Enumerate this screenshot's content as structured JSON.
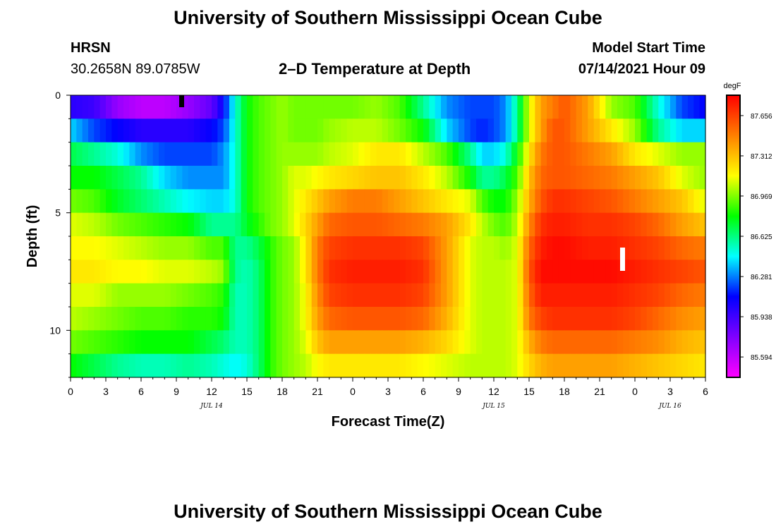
{
  "header": {
    "title": "University of Southern Mississippi Ocean Cube",
    "station": "HRSN",
    "coords": "30.2658N  89.0785W",
    "plot_title": "2–D Temperature at Depth",
    "model_label": "Model Start Time",
    "model_time": "07/14/2021 Hour 09"
  },
  "footer": {
    "title": "University of Southern Mississippi Ocean Cube"
  },
  "colorbar": {
    "unit": "degF",
    "ticks": [
      "87.656",
      "87.312",
      "86.969",
      "86.625",
      "86.281",
      "85.938",
      "85.594"
    ]
  },
  "chart_data": {
    "type": "heatmap",
    "title": "2–D Temperature at Depth",
    "xlabel": "Forecast Time(Z)",
    "ylabel": "Depth (ft)",
    "x_tick_labels": [
      "0",
      "3",
      "6",
      "9",
      "12",
      "15",
      "18",
      "21",
      "0",
      "3",
      "6",
      "9",
      "12",
      "15",
      "18",
      "21",
      "0",
      "3",
      "6"
    ],
    "x_date_labels": [
      {
        "label": "JUL 14",
        "hour_index": 12
      },
      {
        "label": "JUL 15",
        "hour_index": 36
      },
      {
        "label": "JUL 16",
        "hour_index": 51
      }
    ],
    "x_range_hours": [
      0,
      54
    ],
    "y_tick_labels": [
      "0",
      "5",
      "10"
    ],
    "ylim_ft": [
      0,
      12
    ],
    "z_unit": "degF",
    "zlim": [
      85.42,
      87.83
    ],
    "depth_layers_ft": [
      0.5,
      1.5,
      2.5,
      3.5,
      4.5,
      5.5,
      6.5,
      7.5,
      8.5,
      9.5,
      10.5,
      11.5
    ],
    "time_knots_hours": [
      0,
      2,
      4,
      6,
      8,
      10,
      12,
      13,
      14,
      15,
      16,
      17,
      18,
      19,
      20,
      21,
      22,
      24,
      26,
      28,
      30,
      32,
      34,
      35,
      36,
      37,
      38,
      39,
      40,
      41,
      42,
      44,
      46,
      48,
      50,
      52,
      54
    ],
    "temperature_degF": [
      [
        86.0,
        85.95,
        85.7,
        85.6,
        85.6,
        85.7,
        85.85,
        86.1,
        86.5,
        86.8,
        86.9,
        86.95,
        87.0,
        86.95,
        86.95,
        86.95,
        86.95,
        86.95,
        87.0,
        86.9,
        86.6,
        86.3,
        86.2,
        86.2,
        86.2,
        86.3,
        86.6,
        87.1,
        87.4,
        87.5,
        87.6,
        87.4,
        87.0,
        86.9,
        86.5,
        86.2,
        86.1
      ],
      [
        86.4,
        86.2,
        86.1,
        86.0,
        86.0,
        86.0,
        86.1,
        86.2,
        86.5,
        86.8,
        86.9,
        86.95,
        87.0,
        86.95,
        86.95,
        86.95,
        87.0,
        87.05,
        87.05,
        86.95,
        86.8,
        86.4,
        86.2,
        86.15,
        86.2,
        86.3,
        86.6,
        87.1,
        87.4,
        87.6,
        87.6,
        87.4,
        87.2,
        87.0,
        86.6,
        86.4,
        86.4
      ],
      [
        86.7,
        86.6,
        86.5,
        86.3,
        86.2,
        86.2,
        86.2,
        86.3,
        86.5,
        86.8,
        86.9,
        86.95,
        87.0,
        87.0,
        87.0,
        87.0,
        87.05,
        87.1,
        87.2,
        87.2,
        87.05,
        86.9,
        86.6,
        86.4,
        86.4,
        86.5,
        86.8,
        87.2,
        87.5,
        87.6,
        87.6,
        87.5,
        87.4,
        87.2,
        87.1,
        87.0,
        87.0
      ],
      [
        86.8,
        86.8,
        86.7,
        86.6,
        86.4,
        86.3,
        86.3,
        86.3,
        86.5,
        86.8,
        86.9,
        86.95,
        87.0,
        87.1,
        87.1,
        87.15,
        87.2,
        87.25,
        87.3,
        87.3,
        87.2,
        87.05,
        86.8,
        86.6,
        86.6,
        86.7,
        86.9,
        87.3,
        87.55,
        87.6,
        87.6,
        87.55,
        87.5,
        87.4,
        87.3,
        87.1,
        87.0
      ],
      [
        86.95,
        86.9,
        86.75,
        86.65,
        86.55,
        86.45,
        86.4,
        86.4,
        86.5,
        86.8,
        86.9,
        86.95,
        87.0,
        87.1,
        87.2,
        87.3,
        87.4,
        87.5,
        87.5,
        87.4,
        87.3,
        87.2,
        87.1,
        86.9,
        86.8,
        86.8,
        87.0,
        87.35,
        87.6,
        87.7,
        87.7,
        87.65,
        87.6,
        87.5,
        87.4,
        87.3,
        87.1
      ],
      [
        87.1,
        87.05,
        86.95,
        86.9,
        86.85,
        86.8,
        86.6,
        86.6,
        86.6,
        86.75,
        86.85,
        86.95,
        87.0,
        87.1,
        87.25,
        87.4,
        87.55,
        87.6,
        87.6,
        87.55,
        87.5,
        87.4,
        87.2,
        87.05,
        86.95,
        86.9,
        87.05,
        87.45,
        87.7,
        87.75,
        87.75,
        87.7,
        87.7,
        87.65,
        87.55,
        87.4,
        87.3
      ],
      [
        87.15,
        87.15,
        87.1,
        87.05,
        87.0,
        87.0,
        86.9,
        86.9,
        86.6,
        86.6,
        86.7,
        86.85,
        86.95,
        87.0,
        87.2,
        87.5,
        87.65,
        87.7,
        87.7,
        87.7,
        87.65,
        87.4,
        87.1,
        87.05,
        87.05,
        87.0,
        87.1,
        87.55,
        87.75,
        87.8,
        87.8,
        87.75,
        87.75,
        87.7,
        87.65,
        87.55,
        87.5
      ],
      [
        87.2,
        87.2,
        87.15,
        87.15,
        87.1,
        87.1,
        87.05,
        87.0,
        86.6,
        86.55,
        86.65,
        86.85,
        86.95,
        87.0,
        87.2,
        87.5,
        87.7,
        87.75,
        87.75,
        87.75,
        87.7,
        87.4,
        87.1,
        87.05,
        87.05,
        87.05,
        87.1,
        87.6,
        87.8,
        87.8,
        87.8,
        87.8,
        87.8,
        87.75,
        87.7,
        87.65,
        87.6
      ],
      [
        87.1,
        87.1,
        87.0,
        87.0,
        87.0,
        86.95,
        86.9,
        86.85,
        86.55,
        86.55,
        86.65,
        86.85,
        86.95,
        87.0,
        87.15,
        87.45,
        87.65,
        87.7,
        87.7,
        87.7,
        87.65,
        87.4,
        87.1,
        87.05,
        87.05,
        87.05,
        87.1,
        87.55,
        87.75,
        87.75,
        87.75,
        87.75,
        87.75,
        87.7,
        87.65,
        87.55,
        87.5
      ],
      [
        87.05,
        87.0,
        86.95,
        86.9,
        86.9,
        86.85,
        86.85,
        86.8,
        86.55,
        86.55,
        86.65,
        86.85,
        86.95,
        87.0,
        87.15,
        87.4,
        87.55,
        87.6,
        87.6,
        87.6,
        87.55,
        87.35,
        87.1,
        87.05,
        87.05,
        87.05,
        87.1,
        87.5,
        87.65,
        87.7,
        87.7,
        87.7,
        87.7,
        87.65,
        87.55,
        87.45,
        87.4
      ],
      [
        86.95,
        86.9,
        86.85,
        86.8,
        86.8,
        86.8,
        86.7,
        86.65,
        86.55,
        86.55,
        86.65,
        86.85,
        86.95,
        87.0,
        87.1,
        87.3,
        87.4,
        87.4,
        87.4,
        87.4,
        87.35,
        87.25,
        87.1,
        87.05,
        87.05,
        87.05,
        87.1,
        87.35,
        87.5,
        87.55,
        87.55,
        87.55,
        87.55,
        87.5,
        87.45,
        87.35,
        87.3
      ],
      [
        86.8,
        86.7,
        86.6,
        86.55,
        86.55,
        86.6,
        86.55,
        86.5,
        86.45,
        86.5,
        86.65,
        86.85,
        86.95,
        87.0,
        87.05,
        87.15,
        87.2,
        87.2,
        87.2,
        87.2,
        87.15,
        87.1,
        87.05,
        87.05,
        87.05,
        87.05,
        87.1,
        87.25,
        87.35,
        87.4,
        87.4,
        87.4,
        87.4,
        87.35,
        87.3,
        87.25,
        87.2
      ]
    ]
  }
}
